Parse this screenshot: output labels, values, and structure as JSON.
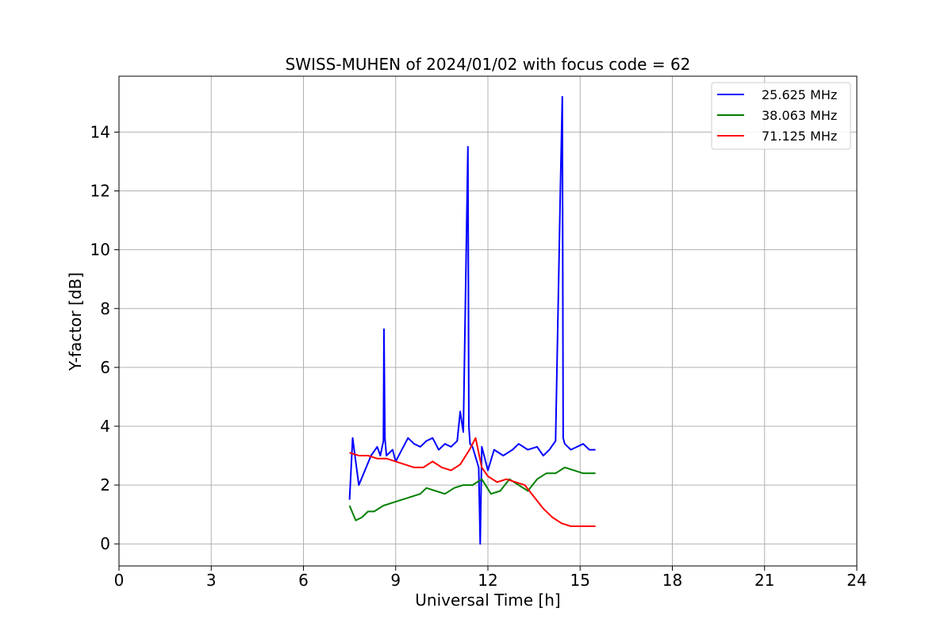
{
  "chart_data": {
    "type": "line",
    "title": "SWISS-MUHEN of 2024/01/02 with focus code = 62",
    "xlabel": "Universal Time [h]",
    "ylabel": "Y-factor [dB]",
    "xlim": [
      0,
      24
    ],
    "ylim": [
      -0.75,
      15.9
    ],
    "xticks": [
      0,
      3,
      6,
      9,
      12,
      15,
      18,
      21,
      24
    ],
    "yticks": [
      0,
      2,
      4,
      6,
      8,
      10,
      12,
      14
    ],
    "grid": true,
    "legend_position": "top-right",
    "series": [
      {
        "name": "25.625 MHz",
        "color": "#0000ff",
        "x": [
          7.5,
          7.6,
          7.8,
          8.0,
          8.2,
          8.4,
          8.5,
          8.6,
          8.62,
          8.65,
          8.7,
          8.9,
          9.0,
          9.2,
          9.4,
          9.6,
          9.8,
          10.0,
          10.2,
          10.4,
          10.6,
          10.8,
          11.0,
          11.1,
          11.2,
          11.35,
          11.38,
          11.42,
          11.5,
          11.7,
          11.75,
          11.8,
          12.0,
          12.2,
          12.5,
          12.8,
          13.0,
          13.3,
          13.6,
          13.8,
          14.0,
          14.2,
          14.35,
          14.42,
          14.45,
          14.5,
          14.7,
          14.9,
          15.1,
          15.3,
          15.5
        ],
        "values": [
          1.5,
          3.6,
          2.0,
          2.5,
          3.0,
          3.3,
          3.0,
          3.5,
          7.3,
          3.6,
          3.0,
          3.2,
          2.8,
          3.2,
          3.6,
          3.4,
          3.3,
          3.5,
          3.6,
          3.2,
          3.4,
          3.3,
          3.5,
          4.5,
          3.8,
          13.5,
          4.0,
          3.4,
          3.3,
          2.6,
          0.0,
          3.3,
          2.5,
          3.2,
          3.0,
          3.2,
          3.4,
          3.2,
          3.3,
          3.0,
          3.2,
          3.5,
          11.7,
          15.2,
          3.6,
          3.4,
          3.2,
          3.3,
          3.4,
          3.2,
          3.2
        ]
      },
      {
        "name": "38.063 MHz",
        "color": "#008000",
        "x": [
          7.5,
          7.7,
          7.9,
          8.1,
          8.3,
          8.6,
          8.9,
          9.2,
          9.5,
          9.8,
          10.0,
          10.3,
          10.6,
          10.9,
          11.2,
          11.5,
          11.8,
          12.1,
          12.4,
          12.7,
          13.0,
          13.3,
          13.6,
          13.9,
          14.2,
          14.5,
          14.8,
          15.1,
          15.5
        ],
        "values": [
          1.3,
          0.8,
          0.9,
          1.1,
          1.1,
          1.3,
          1.4,
          1.5,
          1.6,
          1.7,
          1.9,
          1.8,
          1.7,
          1.9,
          2.0,
          2.0,
          2.2,
          1.7,
          1.8,
          2.2,
          2.0,
          1.8,
          2.2,
          2.4,
          2.4,
          2.6,
          2.5,
          2.4,
          2.4
        ]
      },
      {
        "name": "71.125 MHz",
        "color": "#ff0000",
        "x": [
          7.5,
          7.8,
          8.1,
          8.4,
          8.7,
          9.0,
          9.3,
          9.6,
          9.9,
          10.2,
          10.5,
          10.8,
          11.1,
          11.4,
          11.6,
          11.8,
          12.0,
          12.3,
          12.6,
          12.9,
          13.2,
          13.5,
          13.8,
          14.1,
          14.4,
          14.7,
          15.0,
          15.3,
          15.5
        ],
        "values": [
          3.1,
          3.0,
          3.0,
          2.9,
          2.9,
          2.8,
          2.7,
          2.6,
          2.6,
          2.8,
          2.6,
          2.5,
          2.7,
          3.2,
          3.6,
          2.6,
          2.3,
          2.1,
          2.2,
          2.1,
          2.0,
          1.6,
          1.2,
          0.9,
          0.7,
          0.6,
          0.6,
          0.6,
          0.6
        ]
      }
    ]
  }
}
